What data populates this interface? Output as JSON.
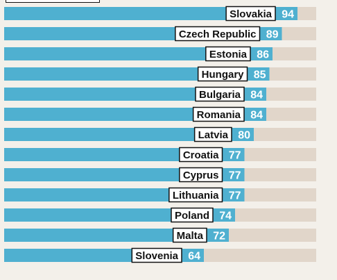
{
  "chart_data": {
    "type": "bar",
    "orientation": "horizontal",
    "categories": [
      "Slovakia",
      "Czech Republic",
      "Estonia",
      "Hungary",
      "Bulgaria",
      "Romania",
      "Latvia",
      "Croatia",
      "Cyprus",
      "Lithuania",
      "Poland",
      "Malta",
      "Slovenia"
    ],
    "values": [
      94,
      89,
      86,
      85,
      84,
      84,
      80,
      77,
      77,
      77,
      74,
      72,
      64
    ],
    "xlim": [
      0,
      100
    ],
    "title": "",
    "xlabel": "",
    "ylabel": "",
    "grid": false,
    "colors": {
      "bar": "#4fb0d0",
      "track": "#e1d6ca",
      "background": "#f3f0ea",
      "value_text": "#ffffff",
      "label_box": "#ffffff",
      "label_border": "#111111",
      "label_text": "#111111"
    }
  }
}
